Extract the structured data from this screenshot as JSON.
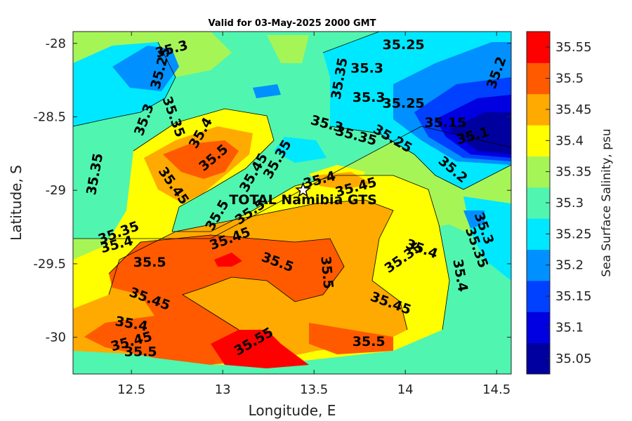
{
  "title": "Valid for 03-May-2025 2000 GMT",
  "colors": {
    "35.05": "#00009f",
    "35.1": "#0000e0",
    "35.15": "#0040ff",
    "35.2": "#0090ff",
    "35.25": "#00e8ff",
    "35.3": "#50f5b0",
    "35.35": "#a6f556",
    "35.4": "#ffff00",
    "35.45": "#ffaa00",
    "35.5": "#ff5a00",
    "35.55": "#ff0000"
  },
  "chart_data": {
    "type": "heatmap",
    "xlabel": "Longitude, E",
    "ylabel": "Latitude, S",
    "xlim": [
      12.18,
      14.58
    ],
    "ylim": [
      -30.25,
      -27.92
    ],
    "xticks": [
      "12.5",
      "13",
      "13.5",
      "14",
      "14.5"
    ],
    "xtick_values": [
      12.5,
      13.0,
      13.5,
      14.0,
      14.5
    ],
    "yticks": [
      "-28",
      "-28.5",
      "-29",
      "-29.5",
      "-30"
    ],
    "ytick_values": [
      -28.0,
      -28.5,
      -29.0,
      -29.5,
      -30.0
    ],
    "colorbar": {
      "label": "Sea Surface Salinity, psu",
      "levels": [
        "35.05",
        "35.1",
        "35.15",
        "35.2",
        "35.25",
        "35.3",
        "35.35",
        "35.4",
        "35.45",
        "35.5",
        "35.55"
      ]
    },
    "station": {
      "name": "TOTAL Namibia GTS",
      "lon": 13.44,
      "lat": -29.0
    },
    "contour_labels": [
      {
        "text": "35.3",
        "lon": 12.72,
        "lat": -28.04,
        "rot": -15
      },
      {
        "text": "35.25",
        "lon": 12.66,
        "lat": -28.17,
        "rot": -75
      },
      {
        "text": "35.3",
        "lon": 12.57,
        "lat": -28.52,
        "rot": -70
      },
      {
        "text": "35.35",
        "lon": 12.73,
        "lat": -28.5,
        "rot": 70
      },
      {
        "text": "35.4",
        "lon": 12.88,
        "lat": -28.61,
        "rot": -60
      },
      {
        "text": "35.5",
        "lon": 12.95,
        "lat": -28.78,
        "rot": -40
      },
      {
        "text": "35.45",
        "lon": 12.73,
        "lat": -28.97,
        "rot": 55
      },
      {
        "text": "35.35",
        "lon": 12.3,
        "lat": -28.89,
        "rot": -80
      },
      {
        "text": "35.45",
        "lon": 13.17,
        "lat": -28.88,
        "rot": -60
      },
      {
        "text": "35.35",
        "lon": 13.3,
        "lat": -28.79,
        "rot": -60
      },
      {
        "text": "35.3",
        "lon": 13.57,
        "lat": -28.55,
        "rot": 15
      },
      {
        "text": "35.35",
        "lon": 13.73,
        "lat": -28.63,
        "rot": 15
      },
      {
        "text": "35.25",
        "lon": 13.93,
        "lat": -28.65,
        "rot": 30
      },
      {
        "text": "35.2",
        "lon": 14.26,
        "lat": -28.86,
        "rot": 40
      },
      {
        "text": "35.35",
        "lon": 13.64,
        "lat": -28.24,
        "rot": -80
      },
      {
        "text": "35.3",
        "lon": 13.79,
        "lat": -28.17,
        "rot": 0
      },
      {
        "text": "35.25",
        "lon": 13.99,
        "lat": -28.01,
        "rot": 0
      },
      {
        "text": "35.3",
        "lon": 13.8,
        "lat": -28.37,
        "rot": 0
      },
      {
        "text": "35.25",
        "lon": 13.99,
        "lat": -28.41,
        "rot": 0
      },
      {
        "text": "35.2",
        "lon": 14.5,
        "lat": -28.2,
        "rot": -70
      },
      {
        "text": "35.15",
        "lon": 14.22,
        "lat": -28.54,
        "rot": 0
      },
      {
        "text": "35.1",
        "lon": 14.37,
        "lat": -28.63,
        "rot": -15
      },
      {
        "text": "35.4",
        "lon": 13.53,
        "lat": -28.93,
        "rot": -15
      },
      {
        "text": "35.45",
        "lon": 13.73,
        "lat": -28.98,
        "rot": -15
      },
      {
        "text": "35.5",
        "lon": 12.97,
        "lat": -29.17,
        "rot": -60
      },
      {
        "text": "35.5",
        "lon": 13.15,
        "lat": -29.15,
        "rot": -35
      },
      {
        "text": "35.45",
        "lon": 13.04,
        "lat": -29.33,
        "rot": -20
      },
      {
        "text": "35.35",
        "lon": 12.43,
        "lat": -29.29,
        "rot": -20
      },
      {
        "text": "35.4",
        "lon": 12.42,
        "lat": -29.37,
        "rot": -15
      },
      {
        "text": "35.5",
        "lon": 12.6,
        "lat": -29.49,
        "rot": 0
      },
      {
        "text": "35.5",
        "lon": 13.3,
        "lat": -29.49,
        "rot": 20
      },
      {
        "text": "35.5",
        "lon": 13.57,
        "lat": -29.56,
        "rot": 85
      },
      {
        "text": "35.4",
        "lon": 14.09,
        "lat": -29.4,
        "rot": 20
      },
      {
        "text": "35.35",
        "lon": 13.99,
        "lat": -29.46,
        "rot": -35
      },
      {
        "text": "35.3",
        "lon": 14.43,
        "lat": -29.26,
        "rot": 70
      },
      {
        "text": "35.35",
        "lon": 14.39,
        "lat": -29.39,
        "rot": 70
      },
      {
        "text": "35.4",
        "lon": 14.3,
        "lat": -29.58,
        "rot": 80
      },
      {
        "text": "35.45",
        "lon": 12.6,
        "lat": -29.74,
        "rot": 20
      },
      {
        "text": "35.45",
        "lon": 13.92,
        "lat": -29.77,
        "rot": 20
      },
      {
        "text": "35.4",
        "lon": 12.5,
        "lat": -29.91,
        "rot": 10
      },
      {
        "text": "35.45",
        "lon": 12.5,
        "lat": -30.03,
        "rot": -15
      },
      {
        "text": "35.5",
        "lon": 12.55,
        "lat": -30.1,
        "rot": 0
      },
      {
        "text": "35.55",
        "lon": 13.17,
        "lat": -30.03,
        "rot": -30
      },
      {
        "text": "35.5",
        "lon": 13.8,
        "lat": -30.03,
        "rot": 0
      }
    ]
  }
}
